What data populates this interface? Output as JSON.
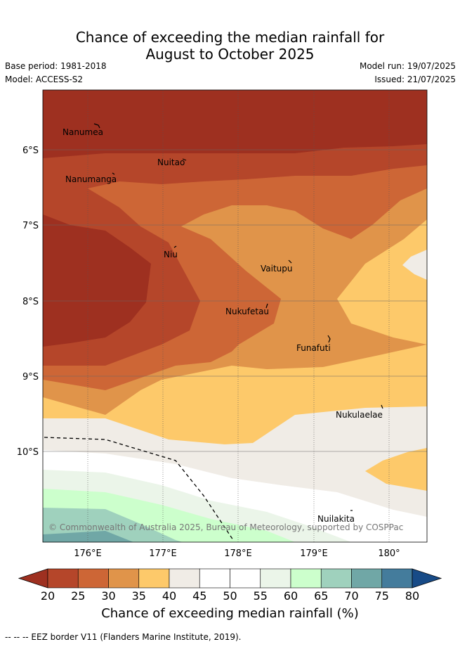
{
  "title_line1": "Chance of exceeding the median rainfall for",
  "title_line2": "August to October 2025",
  "base_period": "Base period: 1981-2018",
  "model": "Model: ACCESS-S2",
  "model_run": "Model run: 19/07/2025",
  "issued": "Issued: 21/07/2025",
  "map": {
    "lat_ticks": [
      "6°S",
      "7°S",
      "8°S",
      "9°S",
      "10°S"
    ],
    "lon_ticks": [
      "176°E",
      "177°E",
      "178°E",
      "179°E",
      "180°"
    ],
    "places": [
      {
        "name": "Nanumea"
      },
      {
        "name": "Nuitao"
      },
      {
        "name": "Nanumanga"
      },
      {
        "name": "Niu"
      },
      {
        "name": "Vaitupu"
      },
      {
        "name": "Nukufetau"
      },
      {
        "name": "Funafuti"
      },
      {
        "name": "Nukulaelae"
      },
      {
        "name": "Nuilakita"
      }
    ],
    "copyright": "© Commonwealth of Australia 2025, Bureau of Meteorology, supported by COSPPac",
    "eez_line": "dashed"
  },
  "colorbar": {
    "ticks": [
      "20",
      "25",
      "30",
      "35",
      "40",
      "45",
      "50",
      "55",
      "60",
      "65",
      "70",
      "75",
      "80"
    ],
    "colors": [
      "#9e3020",
      "#b5462a",
      "#cd6636",
      "#e0944a",
      "#fdc96a",
      "#f0ece6",
      "#ffffff",
      "#ffffff",
      "#ebf5e9",
      "#ccffcc",
      "#9fd1bd",
      "#70a7a6",
      "#447c9c",
      "#184b87"
    ],
    "label": "Chance of exceeding median rainfall (%)"
  },
  "footnote": "-- -- -- EEZ border V11 (Flanders Marine Institute, 2019)."
}
